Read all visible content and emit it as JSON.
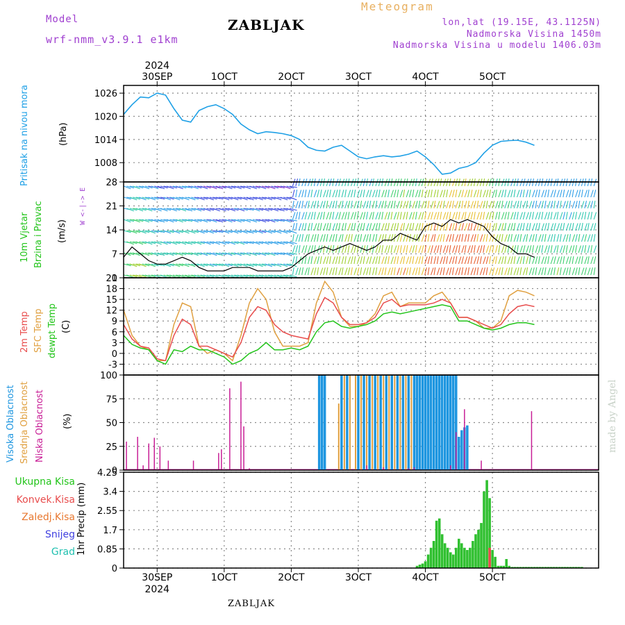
{
  "header": {
    "model_label": "Model",
    "model_name": "wrf-nmm_v3.9.1  e1km",
    "station": "ZABLJAK",
    "product": "Meteogram",
    "coords": "lon,lat (19.15E, 43.1125N)",
    "elevation": "Nadmorska Visina 1450m",
    "model_elevation": "Nadmorska Visina u modelu 1406.03m"
  },
  "footer": {
    "station": "ZABLJAK"
  },
  "credit": "made by Angel",
  "colors": {
    "pressure": "#1ea0e6",
    "temp2m": "#e84c4c",
    "sfc": "#e0a040",
    "dewpoint": "#22c41a",
    "high_cloud": "#1e96e0",
    "mid_cloud": "#e0a040",
    "low_cloud": "#c81e96",
    "total_precip": "#30c030",
    "convective": "#e84c4c",
    "snow": "#4040e0",
    "graupel": "#20c0b0",
    "label_purple": "#a040d0",
    "grid": "#888888"
  },
  "time_axis": {
    "top_year": "2024",
    "bottom_year": "2024",
    "ticks": [
      "30SEP",
      "1OCT",
      "2OCT",
      "3OCT",
      "4OCT",
      "5OCT"
    ]
  },
  "panel_labels": {
    "pressure": {
      "name": "Pritisak na nivou mora",
      "unit": "(hPa)"
    },
    "wind": {
      "name1": "10m Vjetar",
      "name2": "Brzina i Pravac",
      "unit": "(m/s)",
      "compass": "W <-|-> E"
    },
    "temp": {
      "temp2m": "2m Temp",
      "sfc": "SFC Temp",
      "dew": "dewpt Temp",
      "unit": "(C)"
    },
    "cloud": {
      "high": "Visoka Oblacnost",
      "mid": "Srednja Oblacnost",
      "low": "Niska Oblacnost",
      "unit": "(%)"
    },
    "precip": {
      "total": "Ukupna Kisa",
      "conv": "Konvek.Kisa",
      "frozen": "Zaledj.Kisa",
      "snow": "Snijeg",
      "grad": "Grad",
      "unit": "1hr Precip (mm)"
    }
  },
  "chart_data": [
    {
      "type": "line",
      "id": "pressure",
      "ylabel": "(hPa)",
      "ylim": [
        1003,
        1028
      ],
      "yticks": [
        "1008",
        "1014",
        "1020",
        "1026"
      ],
      "ytick_values": [
        1008,
        1014,
        1020,
        1026
      ],
      "x_hours": [
        0,
        3,
        6,
        9,
        12,
        15,
        18,
        21,
        24,
        27,
        30,
        33,
        36,
        39,
        42,
        45,
        48,
        51,
        54,
        57,
        60,
        63,
        66,
        69,
        72,
        75,
        78,
        81,
        84,
        87,
        90,
        93,
        96,
        99,
        102,
        105,
        108,
        111,
        114,
        117,
        120,
        123,
        126,
        129,
        132,
        135,
        138,
        141,
        144,
        147
      ],
      "values": [
        1020.5,
        1023.0,
        1025.0,
        1024.8,
        1026.0,
        1025.5,
        1022.0,
        1019.0,
        1018.5,
        1021.5,
        1022.5,
        1023.0,
        1022.0,
        1020.5,
        1018.0,
        1016.5,
        1015.5,
        1016.0,
        1015.8,
        1015.5,
        1015.0,
        1014.0,
        1012.0,
        1011.2,
        1011.0,
        1012.0,
        1012.5,
        1011.0,
        1009.5,
        1009.0,
        1009.5,
        1009.8,
        1009.5,
        1009.7,
        1010.2,
        1011.0,
        1009.5,
        1007.5,
        1005.0,
        1005.3,
        1006.5,
        1007.0,
        1008.0,
        1010.5,
        1012.5,
        1013.5,
        1013.7,
        1013.8,
        1013.3,
        1012.5
      ]
    },
    {
      "type": "line",
      "id": "wind",
      "ylabel": "(m/s)",
      "ylim": [
        0,
        28
      ],
      "yticks": [
        "0",
        "7",
        "14",
        "21",
        "28"
      ],
      "ytick_values": [
        0,
        7,
        14,
        21,
        28
      ],
      "series": [
        {
          "values": [
            6,
            9,
            7,
            5,
            4,
            4,
            5,
            6,
            5,
            3,
            2,
            2,
            2,
            3,
            3,
            3,
            2,
            2,
            2,
            2,
            3,
            5,
            7,
            8,
            9,
            8,
            9,
            10,
            9,
            8,
            9,
            11,
            11,
            13,
            12,
            11,
            15,
            16,
            15,
            17,
            16,
            17,
            16,
            15,
            12,
            10,
            9,
            7,
            7,
            6
          ]
        }
      ],
      "x_hours": [
        0,
        3,
        6,
        9,
        12,
        15,
        18,
        21,
        24,
        27,
        30,
        33,
        36,
        39,
        42,
        45,
        48,
        51,
        54,
        57,
        60,
        63,
        66,
        69,
        72,
        75,
        78,
        81,
        84,
        87,
        90,
        93,
        96,
        99,
        102,
        105,
        108,
        111,
        114,
        117,
        120,
        123,
        126,
        129,
        132,
        135,
        138,
        141,
        144,
        147
      ]
    },
    {
      "type": "line",
      "id": "temperature",
      "ylabel": "(C)",
      "ylim": [
        -6,
        21
      ],
      "yticks": [
        "-3",
        "0",
        "3",
        "6",
        "9",
        "12",
        "15",
        "18",
        "21"
      ],
      "ytick_values": [
        -3,
        0,
        3,
        6,
        9,
        12,
        15,
        18,
        21
      ],
      "x_hours": [
        0,
        3,
        6,
        9,
        12,
        15,
        18,
        21,
        24,
        27,
        30,
        33,
        36,
        39,
        42,
        45,
        48,
        51,
        54,
        57,
        60,
        63,
        66,
        69,
        72,
        75,
        78,
        81,
        84,
        87,
        90,
        93,
        96,
        99,
        102,
        105,
        108,
        111,
        114,
        117,
        120,
        123,
        126,
        129,
        132,
        135,
        138,
        141,
        144,
        147
      ],
      "series": [
        {
          "name": "2m Temp",
          "values": [
            8,
            4,
            2,
            1.5,
            -1.5,
            -2,
            5,
            9.5,
            8,
            2,
            2,
            1,
            0,
            -1,
            3,
            10,
            13,
            12,
            8,
            6,
            5,
            4.5,
            4,
            11,
            15.5,
            14,
            10,
            8,
            8,
            8.5,
            10,
            14,
            15,
            13,
            13.5,
            13.5,
            13.5,
            14,
            15,
            14,
            10,
            10,
            9,
            8,
            7,
            8,
            11,
            13,
            13.5,
            13
          ]
        },
        {
          "name": "SFC Temp",
          "values": [
            12,
            5,
            2,
            1,
            -2,
            -2,
            8,
            14,
            13,
            2,
            0,
            1,
            0,
            -2,
            5,
            14,
            18,
            15,
            6,
            2,
            2,
            2,
            3,
            14,
            20,
            17,
            10,
            7.5,
            7.5,
            8.5,
            11,
            16,
            17,
            13,
            14,
            14,
            14,
            16,
            17,
            14,
            10,
            10,
            9,
            7,
            7,
            9,
            16,
            17.5,
            17,
            16
          ]
        },
        {
          "name": "dewpt Temp",
          "values": [
            5,
            2.5,
            1.5,
            1,
            -2,
            -3,
            1,
            0.5,
            2,
            1,
            1,
            0,
            -1,
            -3,
            -2,
            0,
            1,
            3,
            1,
            1,
            1.5,
            1,
            2,
            6,
            8.5,
            9,
            7.5,
            7,
            7.5,
            8,
            9,
            11,
            11.5,
            11,
            11.5,
            12,
            12.5,
            13,
            13.5,
            13,
            9,
            9,
            8,
            7,
            6.5,
            7,
            8,
            8.5,
            8.5,
            8
          ]
        }
      ]
    },
    {
      "type": "bar",
      "id": "cloud",
      "ylabel": "(%)",
      "ylim": [
        0,
        100
      ],
      "yticks": [
        "0",
        "25",
        "50",
        "75",
        "100"
      ],
      "ytick_values": [
        0,
        25,
        50,
        75,
        100
      ],
      "series": [
        {
          "name": "Niska Oblacnost",
          "x_hours": [
            1,
            5,
            7,
            9,
            11,
            13,
            16,
            25,
            34,
            35,
            38,
            42,
            43,
            45,
            87,
            93,
            102,
            104,
            117,
            119,
            122,
            128,
            146
          ],
          "values": [
            30,
            35,
            5,
            28,
            34,
            25,
            10,
            10,
            18,
            22,
            86,
            93,
            46,
            2,
            5,
            3,
            2,
            3,
            5,
            40,
            64,
            10,
            62
          ]
        },
        {
          "name": "Srednja Oblacnost",
          "x_hours": [
            70,
            72,
            77,
            79,
            81,
            83,
            85,
            87,
            89,
            91,
            93,
            95,
            97,
            99,
            101,
            103,
            105,
            107,
            109,
            111,
            113,
            115,
            117,
            118
          ],
          "values": [
            100,
            100,
            70,
            100,
            100,
            100,
            100,
            100,
            100,
            100,
            100,
            100,
            100,
            100,
            100,
            100,
            100,
            100,
            100,
            100,
            100,
            100,
            100,
            30
          ]
        },
        {
          "name": "Visoka Oblacnost",
          "x_hours": [
            70,
            71,
            72,
            78,
            80,
            84,
            86,
            88,
            90,
            92,
            94,
            96,
            98,
            100,
            102,
            104,
            105,
            106,
            107,
            108,
            109,
            110,
            111,
            112,
            113,
            114,
            115,
            116,
            117,
            118,
            119,
            120,
            121,
            122,
            123
          ],
          "values": [
            100,
            100,
            100,
            100,
            100,
            100,
            100,
            100,
            100,
            100,
            100,
            100,
            100,
            100,
            100,
            100,
            100,
            100,
            100,
            100,
            100,
            100,
            100,
            100,
            100,
            100,
            100,
            100,
            100,
            100,
            100,
            35,
            42,
            45,
            47
          ]
        }
      ]
    },
    {
      "type": "bar",
      "id": "precip",
      "ylabel": "1hr Precip (mm)",
      "ylim": [
        0,
        4.25
      ],
      "yticks": [
        "0",
        "0.85",
        "1.7",
        "2.55",
        "3.4",
        "4.25"
      ],
      "ytick_values": [
        0,
        0.85,
        1.7,
        2.55,
        3.4,
        4.25
      ],
      "series": [
        {
          "name": "Ukupna Kisa",
          "x_hours": [
            105,
            106,
            107,
            108,
            109,
            110,
            111,
            112,
            113,
            114,
            115,
            116,
            117,
            118,
            119,
            120,
            121,
            122,
            123,
            124,
            125,
            126,
            127,
            128,
            129,
            130,
            131,
            132,
            133,
            134,
            135,
            136,
            137,
            138,
            139,
            140,
            141,
            142,
            143,
            144,
            145,
            146,
            147,
            148,
            149,
            150,
            151,
            152,
            153,
            154,
            155,
            156,
            157,
            158,
            159,
            160,
            161,
            162,
            163,
            164
          ],
          "values": [
            0.1,
            0.15,
            0.2,
            0.3,
            0.6,
            0.9,
            1.2,
            2.1,
            2.2,
            1.5,
            1.1,
            0.9,
            0.7,
            0.6,
            0.9,
            1.3,
            1.1,
            0.9,
            0.8,
            0.9,
            1.2,
            1.5,
            1.7,
            2.0,
            3.4,
            3.9,
            3.1,
            0.8,
            0.5,
            0.1,
            0.1,
            0.1,
            0.4,
            0.1,
            0.05,
            0.05,
            0.05,
            0.05,
            0.05,
            0.05,
            0.05,
            0.05,
            0.05,
            0.05,
            0.05,
            0.05,
            0.05,
            0.05,
            0.05,
            0.05,
            0.05,
            0.05,
            0.05,
            0.05,
            0.05,
            0.05,
            0.05,
            0.05,
            0.05,
            0.05
          ]
        },
        {
          "name": "Konvek.Kisa",
          "x_hours": [
            131
          ],
          "values": [
            0.9
          ]
        }
      ]
    }
  ]
}
